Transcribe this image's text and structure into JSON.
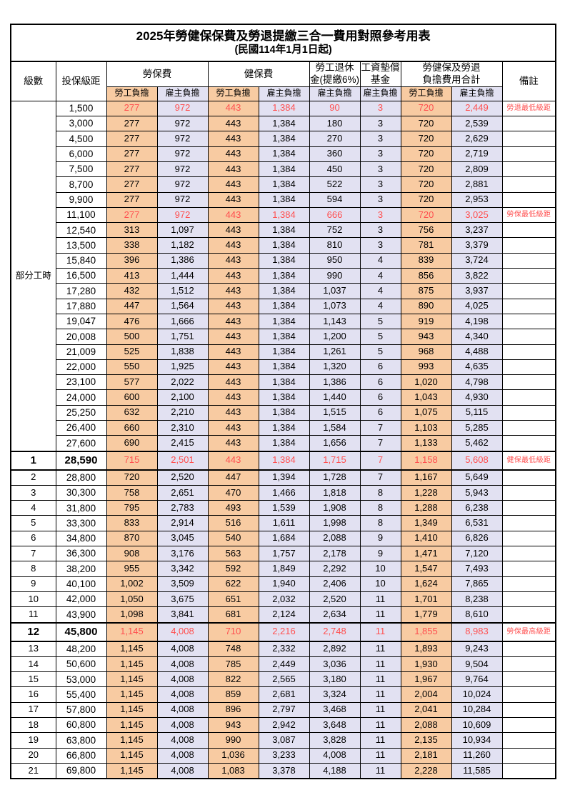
{
  "page": {
    "title": "2025年勞健保保費及勞退提繳三合一費用對照參考用表",
    "subtitle": "(民國114年1月1日起)"
  },
  "colors": {
    "employee_burden_highlight": "#F8CBA2",
    "employer_burden_highlight": "#E2E1F2",
    "alert_red_text": "#FF5050",
    "grid_border": "#000000"
  },
  "header": {
    "level": "級數",
    "bracket": "投保級距",
    "labor_group": "勞保費",
    "health_group": "健保費",
    "pension_group": "勞工退休\n金(提繳6%)",
    "fund_group": "工資墊償\n基金",
    "total_group": "勞健保及勞退\n負擔費用合計",
    "remark": "備註",
    "employee_burden": "勞工負擔",
    "employer_burden": "雇主負擔"
  },
  "table": {
    "part_time_label": "部分工時",
    "part_time_row_count": 23,
    "column_semantics": [
      "labor_employee",
      "labor_employer",
      "health_employee",
      "health_employer",
      "pension_employer",
      "fund_employer",
      "total_employee",
      "total_employer"
    ],
    "rows": [
      {
        "level": "",
        "bracket": "1,500",
        "values": [
          "277",
          "972",
          "443",
          "1,384",
          "90",
          "3",
          "720",
          "2,449"
        ],
        "remark": "勞退最低級距",
        "red": true,
        "special": false
      },
      {
        "level": "",
        "bracket": "3,000",
        "values": [
          "277",
          "972",
          "443",
          "1,384",
          "180",
          "3",
          "720",
          "2,539"
        ],
        "remark": "",
        "red": false,
        "special": false
      },
      {
        "level": "",
        "bracket": "4,500",
        "values": [
          "277",
          "972",
          "443",
          "1,384",
          "270",
          "3",
          "720",
          "2,629"
        ],
        "remark": "",
        "red": false,
        "special": false
      },
      {
        "level": "",
        "bracket": "6,000",
        "values": [
          "277",
          "972",
          "443",
          "1,384",
          "360",
          "3",
          "720",
          "2,719"
        ],
        "remark": "",
        "red": false,
        "special": false
      },
      {
        "level": "",
        "bracket": "7,500",
        "values": [
          "277",
          "972",
          "443",
          "1,384",
          "450",
          "3",
          "720",
          "2,809"
        ],
        "remark": "",
        "red": false,
        "special": false
      },
      {
        "level": "",
        "bracket": "8,700",
        "values": [
          "277",
          "972",
          "443",
          "1,384",
          "522",
          "3",
          "720",
          "2,881"
        ],
        "remark": "",
        "red": false,
        "special": false
      },
      {
        "level": "",
        "bracket": "9,900",
        "values": [
          "277",
          "972",
          "443",
          "1,384",
          "594",
          "3",
          "720",
          "2,953"
        ],
        "remark": "",
        "red": false,
        "special": false
      },
      {
        "level": "",
        "bracket": "11,100",
        "values": [
          "277",
          "972",
          "443",
          "1,384",
          "666",
          "3",
          "720",
          "3,025"
        ],
        "remark": "勞保最低級距",
        "red": true,
        "special": false
      },
      {
        "level": "",
        "bracket": "12,540",
        "values": [
          "313",
          "1,097",
          "443",
          "1,384",
          "752",
          "3",
          "756",
          "3,237"
        ],
        "remark": "",
        "red": false,
        "special": false
      },
      {
        "level": "",
        "bracket": "13,500",
        "values": [
          "338",
          "1,182",
          "443",
          "1,384",
          "810",
          "3",
          "781",
          "3,379"
        ],
        "remark": "",
        "red": false,
        "special": false
      },
      {
        "level": "",
        "bracket": "15,840",
        "values": [
          "396",
          "1,386",
          "443",
          "1,384",
          "950",
          "4",
          "839",
          "3,724"
        ],
        "remark": "",
        "red": false,
        "special": false
      },
      {
        "level": "",
        "bracket": "16,500",
        "values": [
          "413",
          "1,444",
          "443",
          "1,384",
          "990",
          "4",
          "856",
          "3,822"
        ],
        "remark": "",
        "red": false,
        "special": false
      },
      {
        "level": "",
        "bracket": "17,280",
        "values": [
          "432",
          "1,512",
          "443",
          "1,384",
          "1,037",
          "4",
          "875",
          "3,937"
        ],
        "remark": "",
        "red": false,
        "special": false
      },
      {
        "level": "",
        "bracket": "17,880",
        "values": [
          "447",
          "1,564",
          "443",
          "1,384",
          "1,073",
          "4",
          "890",
          "4,025"
        ],
        "remark": "",
        "red": false,
        "special": false
      },
      {
        "level": "",
        "bracket": "19,047",
        "values": [
          "476",
          "1,666",
          "443",
          "1,384",
          "1,143",
          "5",
          "919",
          "4,198"
        ],
        "remark": "",
        "red": false,
        "special": false
      },
      {
        "level": "",
        "bracket": "20,008",
        "values": [
          "500",
          "1,751",
          "443",
          "1,384",
          "1,200",
          "5",
          "943",
          "4,340"
        ],
        "remark": "",
        "red": false,
        "special": false
      },
      {
        "level": "",
        "bracket": "21,009",
        "values": [
          "525",
          "1,838",
          "443",
          "1,384",
          "1,261",
          "5",
          "968",
          "4,488"
        ],
        "remark": "",
        "red": false,
        "special": false
      },
      {
        "level": "",
        "bracket": "22,000",
        "values": [
          "550",
          "1,925",
          "443",
          "1,384",
          "1,320",
          "6",
          "993",
          "4,635"
        ],
        "remark": "",
        "red": false,
        "special": false
      },
      {
        "level": "",
        "bracket": "23,100",
        "values": [
          "577",
          "2,022",
          "443",
          "1,384",
          "1,386",
          "6",
          "1,020",
          "4,798"
        ],
        "remark": "",
        "red": false,
        "special": false
      },
      {
        "level": "",
        "bracket": "24,000",
        "values": [
          "600",
          "2,100",
          "443",
          "1,384",
          "1,440",
          "6",
          "1,043",
          "4,930"
        ],
        "remark": "",
        "red": false,
        "special": false
      },
      {
        "level": "",
        "bracket": "25,250",
        "values": [
          "632",
          "2,210",
          "443",
          "1,384",
          "1,515",
          "6",
          "1,075",
          "5,115"
        ],
        "remark": "",
        "red": false,
        "special": false
      },
      {
        "level": "",
        "bracket": "26,400",
        "values": [
          "660",
          "2,310",
          "443",
          "1,384",
          "1,584",
          "7",
          "1,103",
          "5,285"
        ],
        "remark": "",
        "red": false,
        "special": false
      },
      {
        "level": "",
        "bracket": "27,600",
        "values": [
          "690",
          "2,415",
          "443",
          "1,384",
          "1,656",
          "7",
          "1,133",
          "5,462"
        ],
        "remark": "",
        "red": false,
        "special": false
      },
      {
        "level": "1",
        "bracket": "28,590",
        "values": [
          "715",
          "2,501",
          "443",
          "1,384",
          "1,715",
          "7",
          "1,158",
          "5,608"
        ],
        "remark": "健保最低級距",
        "red": true,
        "special": true
      },
      {
        "level": "2",
        "bracket": "28,800",
        "values": [
          "720",
          "2,520",
          "447",
          "1,394",
          "1,728",
          "7",
          "1,167",
          "5,649"
        ],
        "remark": "",
        "red": false,
        "special": false
      },
      {
        "level": "3",
        "bracket": "30,300",
        "values": [
          "758",
          "2,651",
          "470",
          "1,466",
          "1,818",
          "8",
          "1,228",
          "5,943"
        ],
        "remark": "",
        "red": false,
        "special": false
      },
      {
        "level": "4",
        "bracket": "31,800",
        "values": [
          "795",
          "2,783",
          "493",
          "1,539",
          "1,908",
          "8",
          "1,288",
          "6,238"
        ],
        "remark": "",
        "red": false,
        "special": false
      },
      {
        "level": "5",
        "bracket": "33,300",
        "values": [
          "833",
          "2,914",
          "516",
          "1,611",
          "1,998",
          "8",
          "1,349",
          "6,531"
        ],
        "remark": "",
        "red": false,
        "special": false
      },
      {
        "level": "6",
        "bracket": "34,800",
        "values": [
          "870",
          "3,045",
          "540",
          "1,684",
          "2,088",
          "9",
          "1,410",
          "6,826"
        ],
        "remark": "",
        "red": false,
        "special": false
      },
      {
        "level": "7",
        "bracket": "36,300",
        "values": [
          "908",
          "3,176",
          "563",
          "1,757",
          "2,178",
          "9",
          "1,471",
          "7,120"
        ],
        "remark": "",
        "red": false,
        "special": false
      },
      {
        "level": "8",
        "bracket": "38,200",
        "values": [
          "955",
          "3,342",
          "592",
          "1,849",
          "2,292",
          "10",
          "1,547",
          "7,493"
        ],
        "remark": "",
        "red": false,
        "special": false
      },
      {
        "level": "9",
        "bracket": "40,100",
        "values": [
          "1,002",
          "3,509",
          "622",
          "1,940",
          "2,406",
          "10",
          "1,624",
          "7,865"
        ],
        "remark": "",
        "red": false,
        "special": false
      },
      {
        "level": "10",
        "bracket": "42,000",
        "values": [
          "1,050",
          "3,675",
          "651",
          "2,032",
          "2,520",
          "11",
          "1,701",
          "8,238"
        ],
        "remark": "",
        "red": false,
        "special": false
      },
      {
        "level": "11",
        "bracket": "43,900",
        "values": [
          "1,098",
          "3,841",
          "681",
          "2,124",
          "2,634",
          "11",
          "1,779",
          "8,610"
        ],
        "remark": "",
        "red": false,
        "special": false
      },
      {
        "level": "12",
        "bracket": "45,800",
        "values": [
          "1,145",
          "4,008",
          "710",
          "2,216",
          "2,748",
          "11",
          "1,855",
          "8,983"
        ],
        "remark": "勞保最高級距",
        "red": true,
        "special": true
      },
      {
        "level": "13",
        "bracket": "48,200",
        "values": [
          "1,145",
          "4,008",
          "748",
          "2,332",
          "2,892",
          "11",
          "1,893",
          "9,243"
        ],
        "remark": "",
        "red": false,
        "special": false
      },
      {
        "level": "14",
        "bracket": "50,600",
        "values": [
          "1,145",
          "4,008",
          "785",
          "2,449",
          "3,036",
          "11",
          "1,930",
          "9,504"
        ],
        "remark": "",
        "red": false,
        "special": false
      },
      {
        "level": "15",
        "bracket": "53,000",
        "values": [
          "1,145",
          "4,008",
          "822",
          "2,565",
          "3,180",
          "11",
          "1,967",
          "9,764"
        ],
        "remark": "",
        "red": false,
        "special": false
      },
      {
        "level": "16",
        "bracket": "55,400",
        "values": [
          "1,145",
          "4,008",
          "859",
          "2,681",
          "3,324",
          "11",
          "2,004",
          "10,024"
        ],
        "remark": "",
        "red": false,
        "special": false
      },
      {
        "level": "17",
        "bracket": "57,800",
        "values": [
          "1,145",
          "4,008",
          "896",
          "2,797",
          "3,468",
          "11",
          "2,041",
          "10,284"
        ],
        "remark": "",
        "red": false,
        "special": false
      },
      {
        "level": "18",
        "bracket": "60,800",
        "values": [
          "1,145",
          "4,008",
          "943",
          "2,942",
          "3,648",
          "11",
          "2,088",
          "10,609"
        ],
        "remark": "",
        "red": false,
        "special": false
      },
      {
        "level": "19",
        "bracket": "63,800",
        "values": [
          "1,145",
          "4,008",
          "990",
          "3,087",
          "3,828",
          "11",
          "2,135",
          "10,934"
        ],
        "remark": "",
        "red": false,
        "special": false
      },
      {
        "level": "20",
        "bracket": "66,800",
        "values": [
          "1,145",
          "4,008",
          "1,036",
          "3,233",
          "4,008",
          "11",
          "2,181",
          "11,260"
        ],
        "remark": "",
        "red": false,
        "special": false
      },
      {
        "level": "21",
        "bracket": "69,800",
        "values": [
          "1,145",
          "4,008",
          "1,083",
          "3,378",
          "4,188",
          "11",
          "2,228",
          "11,585"
        ],
        "remark": "",
        "red": false,
        "special": false
      }
    ]
  }
}
